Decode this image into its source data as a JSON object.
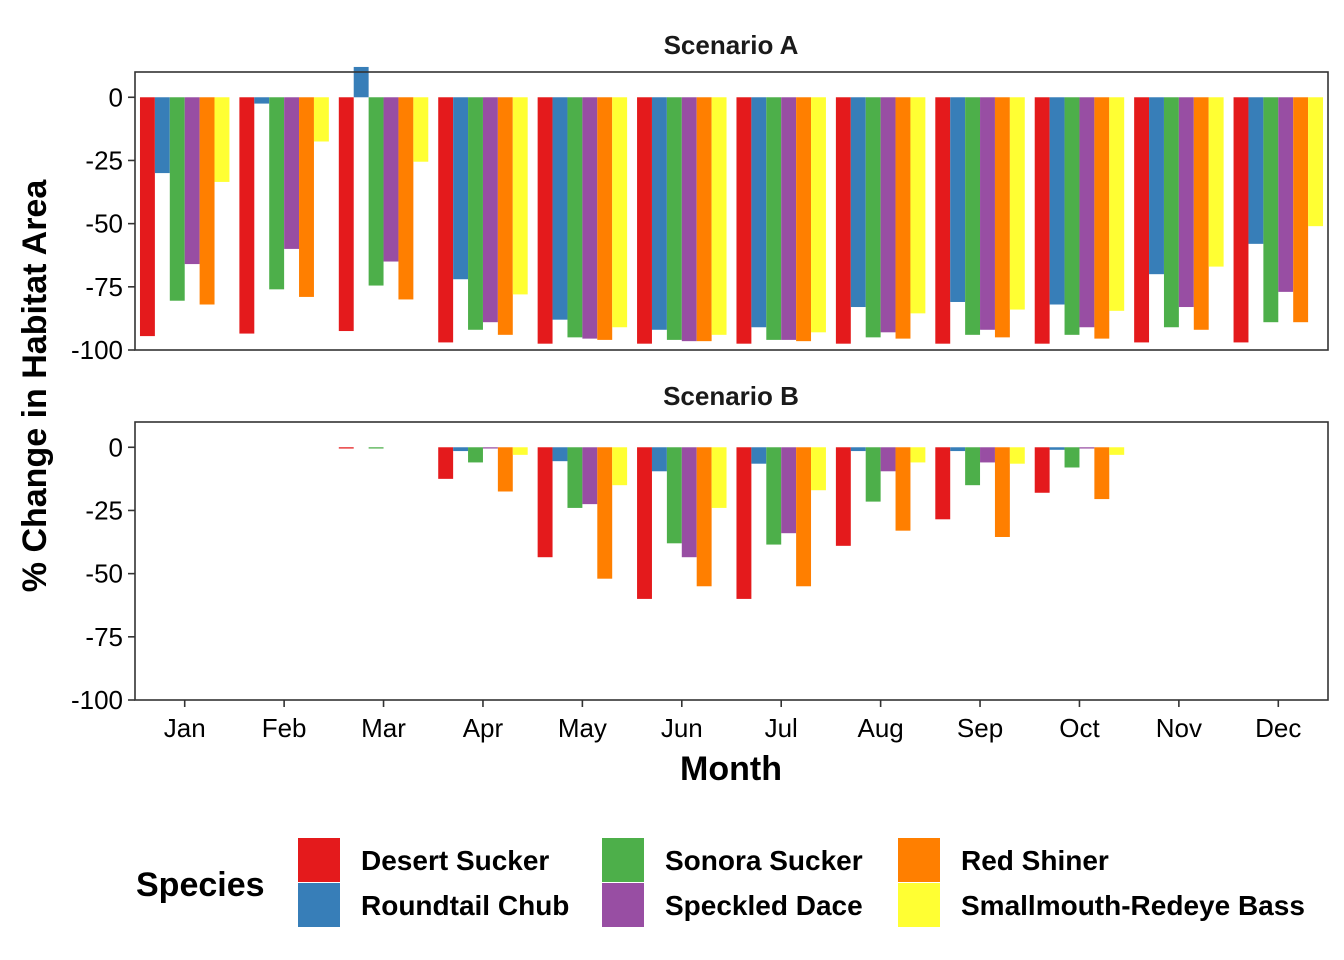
{
  "chart_data": {
    "type": "bar",
    "ylabel": "% Change in Habitat Area",
    "xlabel": "Month",
    "ylim": [
      -100,
      10
    ],
    "yticks": [
      0,
      -25,
      -50,
      -75,
      -100
    ],
    "ytick_labels": [
      "0",
      "-25",
      "-50",
      "-75",
      "-100"
    ],
    "categories": [
      "Jan",
      "Feb",
      "Mar",
      "Apr",
      "May",
      "Jun",
      "Jul",
      "Aug",
      "Sep",
      "Oct",
      "Nov",
      "Dec"
    ],
    "legend": {
      "title": "Species",
      "placement": "bottom"
    },
    "series_meta": [
      {
        "name": "Desert Sucker",
        "color": "#E41A1C"
      },
      {
        "name": "Roundtail Chub",
        "color": "#377EB8"
      },
      {
        "name": "Sonora Sucker",
        "color": "#4DAF4A"
      },
      {
        "name": "Speckled Dace",
        "color": "#984EA3"
      },
      {
        "name": "Red Shiner",
        "color": "#FF7F00"
      },
      {
        "name": "Smallmouth-Redeye Bass",
        "color": "#FFFF33"
      }
    ],
    "panels": [
      {
        "title": "Scenario A",
        "series": [
          {
            "name": "Desert Sucker",
            "values": [
              -94.5,
              -93.5,
              -92.5,
              -97,
              -97.5,
              -97.5,
              -97.5,
              -97.5,
              -97.5,
              -97.5,
              -97,
              -97
            ]
          },
          {
            "name": "Roundtail Chub",
            "values": [
              -30,
              -2.5,
              12,
              -72,
              -88,
              -92,
              -91,
              -83,
              -81,
              -82,
              -70,
              -58
            ]
          },
          {
            "name": "Sonora Sucker",
            "values": [
              -80.5,
              -76,
              -74.5,
              -92,
              -95,
              -96,
              -96,
              -95,
              -94,
              -94,
              -91,
              -89
            ]
          },
          {
            "name": "Speckled Dace",
            "values": [
              -66,
              -60,
              -65,
              -89,
              -95.5,
              -96.5,
              -96,
              -93,
              -92,
              -91,
              -83,
              -77
            ]
          },
          {
            "name": "Red Shiner",
            "values": [
              -82,
              -79,
              -80,
              -94,
              -96,
              -96.5,
              -96.5,
              -95.5,
              -95,
              -95.5,
              -92,
              -89
            ]
          },
          {
            "name": "Smallmouth-Redeye Bass",
            "values": [
              -33.5,
              -17.5,
              -25.5,
              -78,
              -91,
              -94,
              -93,
              -85.5,
              -84,
              -84.5,
              -67,
              -51
            ]
          }
        ]
      },
      {
        "title": "Scenario B",
        "series": [
          {
            "name": "Desert Sucker",
            "values": [
              0,
              0,
              -0.5,
              -12.5,
              -43.5,
              -60,
              -60,
              -39,
              -28.5,
              -18,
              0,
              0
            ]
          },
          {
            "name": "Roundtail Chub",
            "values": [
              0,
              0,
              0,
              -1.5,
              -5.5,
              -9.5,
              -6.5,
              -1.5,
              -1.5,
              -1,
              0,
              0
            ]
          },
          {
            "name": "Sonora Sucker",
            "values": [
              0,
              0,
              -0.5,
              -6,
              -24,
              -38,
              -38.5,
              -21.5,
              -15,
              -8,
              0,
              0
            ]
          },
          {
            "name": "Speckled Dace",
            "values": [
              0,
              0,
              0,
              -0.5,
              -22.5,
              -43.5,
              -34,
              -9.5,
              -6,
              -0.5,
              0,
              0
            ]
          },
          {
            "name": "Red Shiner",
            "values": [
              0,
              0,
              0,
              -17.5,
              -52,
              -55,
              -55,
              -33,
              -35.5,
              -20.5,
              0,
              0
            ]
          },
          {
            "name": "Smallmouth-Redeye Bass",
            "values": [
              0,
              0,
              0,
              -3,
              -15,
              -24,
              -17,
              -6,
              -6.5,
              -3,
              0,
              0
            ]
          }
        ]
      }
    ]
  }
}
